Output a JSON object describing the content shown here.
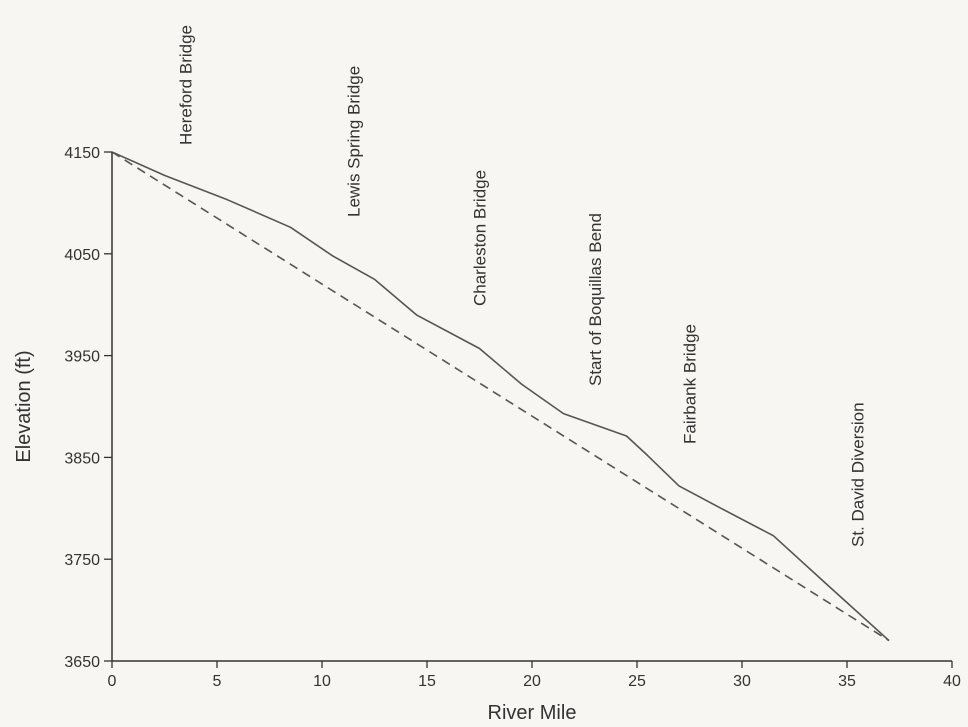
{
  "chart_data": {
    "type": "line",
    "xlabel": "River Mile",
    "ylabel": "Elevation (ft)",
    "xlim": [
      0,
      40
    ],
    "ylim": [
      3650,
      4150
    ],
    "xticks": [
      0,
      5,
      10,
      15,
      20,
      25,
      30,
      35,
      40
    ],
    "yticks": [
      3650,
      3750,
      3850,
      3950,
      4050,
      4150
    ],
    "grid": false,
    "series": [
      {
        "style": "solid",
        "color": "#555555",
        "points": [
          [
            0,
            4150
          ],
          [
            2.5,
            4127
          ],
          [
            5.5,
            4103
          ],
          [
            8.5,
            4076
          ],
          [
            10.5,
            4048
          ],
          [
            12.5,
            4025
          ],
          [
            14.5,
            3990
          ],
          [
            17.5,
            3957
          ],
          [
            19.5,
            3922
          ],
          [
            21.5,
            3893
          ],
          [
            24.5,
            3871
          ],
          [
            25.5,
            3852
          ],
          [
            27,
            3822
          ],
          [
            29,
            3800
          ],
          [
            31.5,
            3773
          ],
          [
            34,
            3726
          ],
          [
            37,
            3670
          ]
        ]
      },
      {
        "style": "dashed",
        "color": "#555555",
        "points": [
          [
            0,
            4150
          ],
          [
            37,
            3670
          ]
        ]
      }
    ],
    "annotations": [
      {
        "text": "Hereford Bridge",
        "x": 3.5
      },
      {
        "text": "Lewis Spring Bridge",
        "x": 11.5
      },
      {
        "text": "Charleston Bridge",
        "x": 17.5
      },
      {
        "text": "Start of Boquillas Bend",
        "x": 23
      },
      {
        "text": "Fairbank Bridge",
        "x": 27.5
      },
      {
        "text": "St. David Diversion",
        "x": 35.5
      }
    ]
  }
}
